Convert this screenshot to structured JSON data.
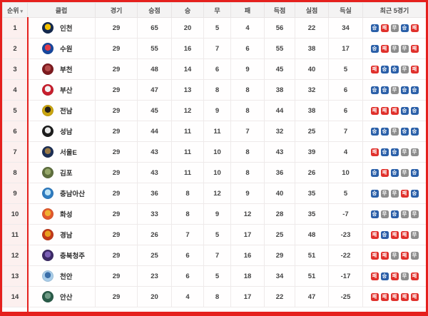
{
  "page": {
    "highlight_color": "#e5201d"
  },
  "table": {
    "header": {
      "rank": "순위",
      "rank_sort_icon": "▾",
      "club": "클럽",
      "matches": "경기",
      "points": "승점",
      "wins": "승",
      "draws": "무",
      "losses": "패",
      "goals_for": "득점",
      "goals_against": "실점",
      "goal_diff": "득실",
      "recent": "최근 5경기"
    },
    "result_colors": {
      "승": "#2a5fa8",
      "무": "#8c8c8c",
      "패": "#e0312c"
    },
    "rows": [
      {
        "rank": "1",
        "club": "인천",
        "logo_colors": [
          "#14294f",
          "#f2c100"
        ],
        "matches": "29",
        "points": "65",
        "wins": "20",
        "draws": "5",
        "losses": "4",
        "goals_for": "56",
        "goals_against": "22",
        "goal_diff": "34",
        "recent": [
          "승",
          "패",
          "무",
          "승",
          "패"
        ]
      },
      {
        "rank": "2",
        "club": "수원",
        "logo_colors": [
          "#17479e",
          "#e33b47"
        ],
        "matches": "29",
        "points": "55",
        "wins": "16",
        "draws": "7",
        "losses": "6",
        "goals_for": "55",
        "goals_against": "38",
        "goal_diff": "17",
        "recent": [
          "승",
          "패",
          "무",
          "무",
          "패"
        ]
      },
      {
        "rank": "3",
        "club": "부천",
        "logo_colors": [
          "#7d1a1f",
          "#b34a4a"
        ],
        "matches": "29",
        "points": "48",
        "wins": "14",
        "draws": "6",
        "losses": "9",
        "goals_for": "45",
        "goals_against": "40",
        "goal_diff": "5",
        "recent": [
          "패",
          "승",
          "승",
          "무",
          "패"
        ]
      },
      {
        "rank": "4",
        "club": "부산",
        "logo_colors": [
          "#c81f2e",
          "#f2f2f2"
        ],
        "matches": "29",
        "points": "47",
        "wins": "13",
        "draws": "8",
        "losses": "8",
        "goals_for": "38",
        "goals_against": "32",
        "goal_diff": "6",
        "recent": [
          "승",
          "승",
          "무",
          "승",
          "승"
        ]
      },
      {
        "rank": "5",
        "club": "전남",
        "logo_colors": [
          "#caa511",
          "#26221a"
        ],
        "matches": "29",
        "points": "45",
        "wins": "12",
        "draws": "9",
        "losses": "8",
        "goals_for": "44",
        "goals_against": "38",
        "goal_diff": "6",
        "recent": [
          "패",
          "패",
          "패",
          "승",
          "승"
        ]
      },
      {
        "rank": "6",
        "club": "성남",
        "logo_colors": [
          "#1d1d1d",
          "#e8e8e8"
        ],
        "matches": "29",
        "points": "44",
        "wins": "11",
        "draws": "11",
        "losses": "7",
        "goals_for": "32",
        "goals_against": "25",
        "goal_diff": "7",
        "recent": [
          "승",
          "승",
          "무",
          "승",
          "승"
        ]
      },
      {
        "rank": "7",
        "club": "서울E",
        "logo_colors": [
          "#1d2f55",
          "#9a7a45"
        ],
        "matches": "29",
        "points": "43",
        "wins": "11",
        "draws": "10",
        "losses": "8",
        "goals_for": "43",
        "goals_against": "39",
        "goal_diff": "4",
        "recent": [
          "패",
          "승",
          "승",
          "무",
          "무"
        ]
      },
      {
        "rank": "8",
        "club": "김포",
        "logo_colors": [
          "#5f6f3e",
          "#97a86a"
        ],
        "matches": "29",
        "points": "43",
        "wins": "11",
        "draws": "10",
        "losses": "8",
        "goals_for": "36",
        "goals_against": "26",
        "goal_diff": "10",
        "recent": [
          "승",
          "패",
          "승",
          "무",
          "승"
        ]
      },
      {
        "rank": "9",
        "club": "충남아산",
        "logo_colors": [
          "#2f7cc0",
          "#bfe3f5"
        ],
        "matches": "29",
        "points": "36",
        "wins": "8",
        "draws": "12",
        "losses": "9",
        "goals_for": "40",
        "goals_against": "35",
        "goal_diff": "5",
        "recent": [
          "승",
          "무",
          "무",
          "패",
          "승"
        ]
      },
      {
        "rank": "10",
        "club": "화성",
        "logo_colors": [
          "#e2592c",
          "#f0b030"
        ],
        "matches": "29",
        "points": "33",
        "wins": "8",
        "draws": "9",
        "losses": "12",
        "goals_for": "28",
        "goals_against": "35",
        "goal_diff": "-7",
        "recent": [
          "승",
          "무",
          "승",
          "무",
          "무"
        ]
      },
      {
        "rank": "11",
        "club": "경남",
        "logo_colors": [
          "#c23a1a",
          "#e8a020"
        ],
        "matches": "29",
        "points": "26",
        "wins": "7",
        "draws": "5",
        "losses": "17",
        "goals_for": "25",
        "goals_against": "48",
        "goal_diff": "-23",
        "recent": [
          "패",
          "승",
          "패",
          "패",
          "무"
        ]
      },
      {
        "rank": "12",
        "club": "충북청주",
        "logo_colors": [
          "#3d2b68",
          "#7a5fb5"
        ],
        "matches": "29",
        "points": "25",
        "wins": "6",
        "draws": "7",
        "losses": "16",
        "goals_for": "29",
        "goals_against": "51",
        "goal_diff": "-22",
        "recent": [
          "패",
          "패",
          "무",
          "패",
          "무"
        ]
      },
      {
        "rank": "13",
        "club": "천안",
        "logo_colors": [
          "#a8cce8",
          "#3a6ea8"
        ],
        "matches": "29",
        "points": "23",
        "wins": "6",
        "draws": "5",
        "losses": "18",
        "goals_for": "34",
        "goals_against": "51",
        "goal_diff": "-17",
        "recent": [
          "패",
          "승",
          "패",
          "무",
          "패"
        ]
      },
      {
        "rank": "14",
        "club": "안산",
        "logo_colors": [
          "#2a5c49",
          "#6f9a85"
        ],
        "matches": "29",
        "points": "20",
        "wins": "4",
        "draws": "8",
        "losses": "17",
        "goals_for": "22",
        "goals_against": "47",
        "goal_diff": "-25",
        "recent": [
          "패",
          "패",
          "패",
          "패",
          "패"
        ]
      }
    ]
  }
}
